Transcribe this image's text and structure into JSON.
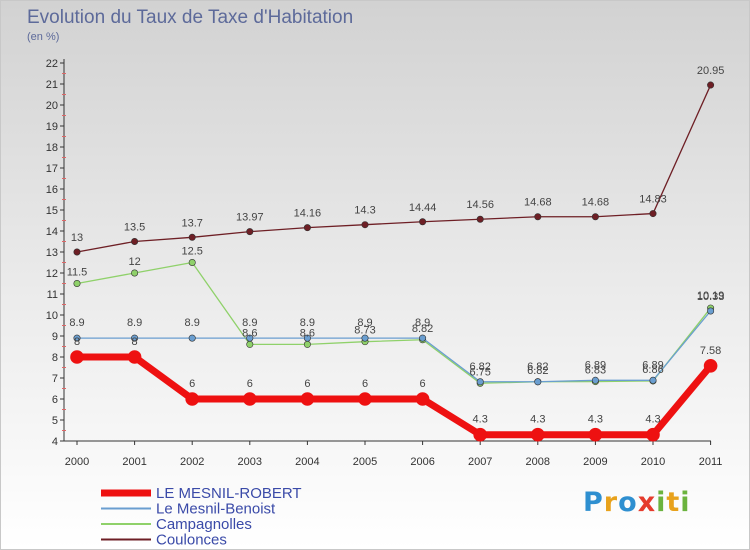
{
  "title": "Evolution du Taux de Taxe d'Habitation",
  "subtitle": "(en %)",
  "brand": {
    "text": "Proxiti",
    "letters": [
      {
        "ch": "P",
        "color": "#2e8fd0"
      },
      {
        "ch": "r",
        "color": "#e8a21c"
      },
      {
        "ch": "o",
        "color": "#2e8fd0"
      },
      {
        "ch": "x",
        "color": "#e53b2c"
      },
      {
        "ch": "i",
        "color": "#6bb33e"
      },
      {
        "ch": "t",
        "color": "#e8a21c"
      },
      {
        "ch": "i",
        "color": "#6bb33e"
      }
    ]
  },
  "chart_data": {
    "type": "line",
    "title": "Evolution du Taux de Taxe d'Habitation",
    "ylabel": "(en %)",
    "xlabel": "",
    "x": [
      "2000",
      "2001",
      "2002",
      "2003",
      "2004",
      "2005",
      "2006",
      "2007",
      "2008",
      "2009",
      "2010",
      "2011"
    ],
    "ylim": [
      4,
      22
    ],
    "yticks": [
      4,
      5,
      6,
      7,
      8,
      9,
      10,
      11,
      12,
      13,
      14,
      15,
      16,
      17,
      18,
      19,
      20,
      21,
      22
    ],
    "grid": false,
    "legend_position": "bottom-left",
    "series": [
      {
        "name": "Coulonces",
        "color": "#6e1f25",
        "values": [
          13,
          13.5,
          13.7,
          13.97,
          14.16,
          14.3,
          14.44,
          14.56,
          14.68,
          14.68,
          14.83,
          20.95
        ],
        "labels": [
          "13",
          "13.5",
          "13.7",
          "13.97",
          "14.16",
          "14.3",
          "14.44",
          "14.56",
          "14.68",
          "14.68",
          "14.83",
          "20.95"
        ]
      },
      {
        "name": "Campagnolles",
        "color": "#8fd16a",
        "values": [
          11.5,
          12,
          12.5,
          8.6,
          8.6,
          8.73,
          8.82,
          6.75,
          6.82,
          6.83,
          6.86,
          10.33
        ],
        "labels": [
          "11.5",
          "12",
          "12.5",
          "8.6",
          "8.6",
          "8.73",
          "8.82",
          "6.75",
          "6.82",
          "6.83",
          "6.86",
          "10.33"
        ]
      },
      {
        "name": "Le Mesnil-Benoist",
        "color": "#6a9ed0",
        "values": [
          8.9,
          8.9,
          8.9,
          8.9,
          8.9,
          8.9,
          8.9,
          6.82,
          6.82,
          6.89,
          6.89,
          10.19
        ],
        "labels": [
          "8.9",
          "8.9",
          "8.9",
          "8.9",
          "8.9",
          "8.9",
          "8.9",
          "6.82",
          "6.82",
          "6.89",
          "6.89",
          "10.19"
        ]
      },
      {
        "name": "LE MESNIL-ROBERT",
        "color": "#ee1111",
        "values": [
          8,
          8,
          6,
          6,
          6,
          6,
          6,
          4.3,
          4.3,
          4.3,
          4.3,
          7.58
        ],
        "labels": [
          "8",
          "8",
          "6",
          "6",
          "6",
          "6",
          "6",
          "4.3",
          "4.3",
          "4.3",
          "4.3",
          "7.58"
        ]
      }
    ],
    "legend": [
      "LE MESNIL-ROBERT",
      "Le Mesnil-Benoist",
      "Campagnolles",
      "Coulonces"
    ]
  }
}
